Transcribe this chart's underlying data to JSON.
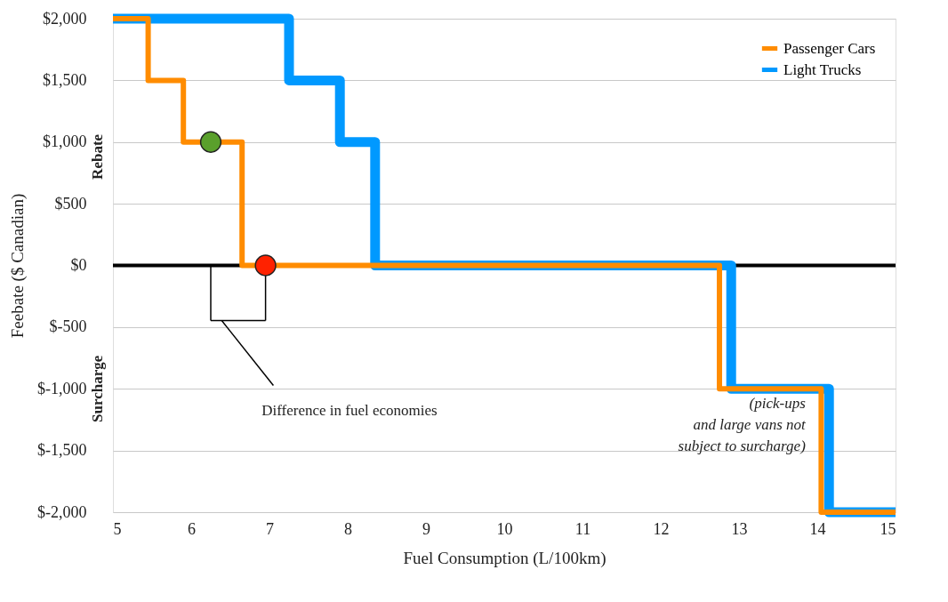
{
  "chart_data": {
    "type": "step",
    "xlabel": "Fuel Consumption (L/100km)",
    "ylabel": "Feebate ($ Canadian)",
    "xlim": [
      5,
      15
    ],
    "xticks": [
      5,
      6,
      7,
      8,
      9,
      10,
      11,
      12,
      13,
      14,
      15
    ],
    "ylim": [
      -2000,
      2000
    ],
    "yticks": [
      {
        "value": -2000,
        "label": "$-2,000"
      },
      {
        "value": -1500,
        "label": "$-1,500"
      },
      {
        "value": -1000,
        "label": "$-1,000"
      },
      {
        "value": -500,
        "label": "$-500"
      },
      {
        "value": 0,
        "label": "$0"
      },
      {
        "value": 500,
        "label": "$500"
      },
      {
        "value": 1000,
        "label": "$1,000"
      },
      {
        "value": 1500,
        "label": "$1,500"
      },
      {
        "value": 2000,
        "label": "$2,000"
      }
    ],
    "grid": "y",
    "legend": "top right",
    "line_style": "solid",
    "series": [
      {
        "name": "Passenger Cars",
        "color": "#ff8c00",
        "x": [
          5,
          5.45,
          5.9,
          6.65,
          12.75,
          14.05,
          15
        ],
        "values": [
          2000,
          1500,
          1000,
          0,
          -1000,
          -2000,
          -2000
        ]
      },
      {
        "name": "Light Trucks",
        "color": "#0099ff",
        "x": [
          5,
          7.25,
          7.9,
          8.35,
          12.9,
          14.15,
          15
        ],
        "values": [
          2000,
          1500,
          1000,
          0,
          -1000,
          -2000,
          -2000
        ]
      },
      {
        "type": "scatter",
        "color": "#5aa02c",
        "x": [
          6.25
        ],
        "values": [
          1000
        ]
      },
      {
        "type": "scatter",
        "color": "#ff2200",
        "x": [
          6.95
        ],
        "values": [
          0
        ]
      }
    ],
    "ref_lines": [
      {
        "axis": "y",
        "value": 0,
        "color": "#000000"
      }
    ],
    "annotations": [
      "Rebate",
      "Surcharge",
      "(pick-ups\nand large vans not\nsubject to surcharge)",
      "Difference in fuel economies"
    ]
  }
}
